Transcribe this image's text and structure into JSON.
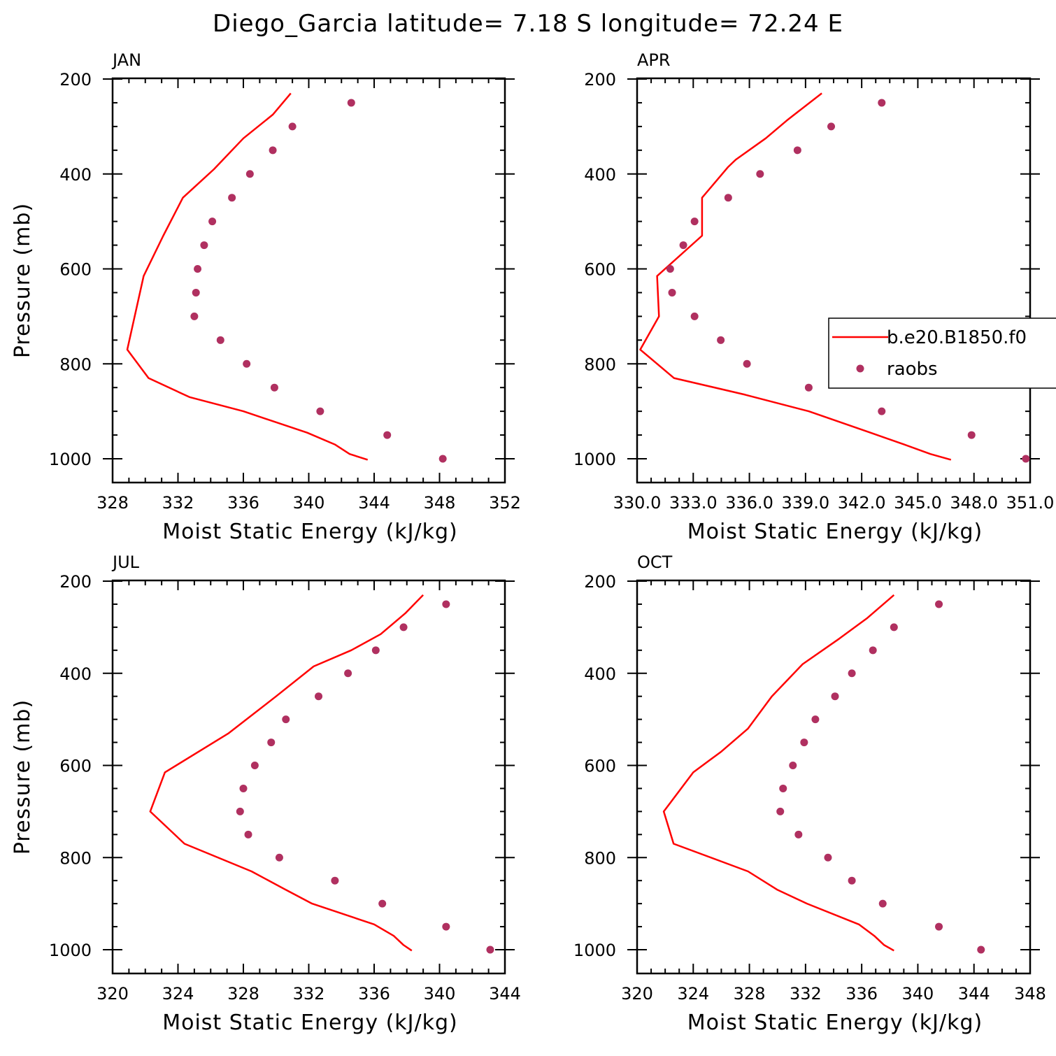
{
  "title": "Diego_Garcia  latitude= 7.18 S longitude= 72.24 E",
  "colors": {
    "model": "#ff0000",
    "raobs": "#b03060",
    "axes": "#000000"
  },
  "chart_data": [
    {
      "type": "line",
      "panel": "JAN",
      "xlabel": "Moist Static Energy (kJ/kg)",
      "ylabel": "Pressure (mb)",
      "xlim": [
        328,
        352
      ],
      "ylim": [
        1000,
        200
      ],
      "xticks": [
        328,
        332,
        336,
        340,
        344,
        348,
        352
      ],
      "xtick_labels": [
        "328",
        "332",
        "336",
        "340",
        "344",
        "348",
        "352"
      ],
      "yticks": [
        200,
        400,
        600,
        800,
        1000
      ],
      "ytick_labels": [
        "200",
        "400",
        "600",
        "800",
        "1000"
      ],
      "series": [
        {
          "style": "line",
          "color": "#ff0000",
          "x": [
            338.9,
            337.8,
            336.0,
            334.2,
            332.3,
            331.1,
            329.9,
            328.9,
            330.2,
            332.7,
            336.0,
            339.9,
            341.6,
            342.5,
            343.6
          ],
          "y": [
            230,
            275,
            325,
            390,
            450,
            530,
            615,
            770,
            830,
            870,
            900,
            945,
            970,
            990,
            1002
          ]
        },
        {
          "style": "points",
          "color": "#b03060",
          "x": [
            342.6,
            339.0,
            337.8,
            336.4,
            335.3,
            334.1,
            333.6,
            333.2,
            333.1,
            333.0,
            334.6,
            336.2,
            337.9,
            340.7,
            344.8,
            348.2
          ],
          "y": [
            250,
            300,
            350,
            400,
            450,
            500,
            550,
            600,
            650,
            700,
            750,
            800,
            850,
            900,
            950,
            1000
          ]
        }
      ]
    },
    {
      "type": "line",
      "panel": "APR",
      "xlabel": "Moist Static Energy (kJ/kg)",
      "ylabel": "",
      "xlim": [
        330.03,
        351.03
      ],
      "ylim": [
        1000,
        200
      ],
      "xticks": [
        330.03,
        333.03,
        336.03,
        339.03,
        342.03,
        345.03,
        348.03,
        351.03
      ],
      "xtick_labels": [
        "330.0",
        "333.0",
        "336.0",
        "339.0",
        "342.0",
        "345.0",
        "348.0",
        "351.0"
      ],
      "yticks": [
        200,
        400,
        600,
        800,
        1000
      ],
      "ytick_labels": [
        "200",
        "400",
        "600",
        "800",
        "1000"
      ],
      "legend": {
        "position": "right",
        "entries": [
          "b.e20.B1850.f0",
          "raobs"
        ]
      },
      "series": [
        {
          "style": "line",
          "color": "#ff0000",
          "name": "b.e20.B1850.f0",
          "x": [
            339.9,
            338.1,
            336.9,
            335.3,
            334.9,
            333.5,
            333.5,
            331.1,
            331.2,
            330.2,
            332.0,
            335.8,
            339.2,
            342.5,
            344.3,
            345.7,
            346.8
          ],
          "y": [
            230,
            285,
            325,
            370,
            385,
            450,
            530,
            615,
            700,
            770,
            830,
            865,
            900,
            945,
            970,
            990,
            1002
          ]
        },
        {
          "style": "points",
          "color": "#b03060",
          "name": "raobs",
          "x": [
            343.1,
            340.4,
            338.6,
            336.6,
            334.9,
            333.1,
            332.5,
            331.8,
            331.9,
            333.1,
            334.5,
            335.9,
            339.2,
            343.1,
            347.9,
            350.8
          ],
          "y": [
            250,
            300,
            350,
            400,
            450,
            500,
            550,
            600,
            650,
            700,
            750,
            800,
            850,
            900,
            950,
            1000
          ]
        }
      ]
    },
    {
      "type": "line",
      "panel": "JUL",
      "xlabel": "Moist Static Energy (kJ/kg)",
      "ylabel": "Pressure (mb)",
      "xlim": [
        320,
        344
      ],
      "ylim": [
        1000,
        200
      ],
      "xticks": [
        320,
        324,
        328,
        332,
        336,
        340,
        344
      ],
      "xtick_labels": [
        "320",
        "324",
        "328",
        "332",
        "336",
        "340",
        "344"
      ],
      "yticks": [
        200,
        400,
        600,
        800,
        1000
      ],
      "ytick_labels": [
        "200",
        "400",
        "600",
        "800",
        "1000"
      ],
      "series": [
        {
          "style": "line",
          "color": "#ff0000",
          "x": [
            339.0,
            337.9,
            336.4,
            334.6,
            332.3,
            330.0,
            327.1,
            323.2,
            322.3,
            324.4,
            328.5,
            330.6,
            332.2,
            336.0,
            337.2,
            337.8,
            338.3
          ],
          "y": [
            230,
            270,
            315,
            350,
            385,
            450,
            530,
            615,
            700,
            770,
            830,
            870,
            900,
            945,
            970,
            990,
            1002
          ]
        },
        {
          "style": "points",
          "color": "#b03060",
          "x": [
            340.4,
            337.8,
            336.1,
            334.4,
            332.6,
            330.6,
            329.7,
            328.7,
            328.0,
            327.8,
            328.3,
            330.2,
            333.6,
            336.5,
            340.4,
            343.1
          ],
          "y": [
            250,
            300,
            350,
            400,
            450,
            500,
            550,
            600,
            650,
            700,
            750,
            800,
            850,
            900,
            950,
            1000
          ]
        }
      ]
    },
    {
      "type": "line",
      "panel": "OCT",
      "xlabel": "Moist Static Energy (kJ/kg)",
      "ylabel": "",
      "xlim": [
        320,
        348
      ],
      "ylim": [
        1000,
        200
      ],
      "xticks": [
        320,
        324,
        328,
        332,
        336,
        340,
        344,
        348
      ],
      "xtick_labels": [
        "320",
        "324",
        "328",
        "332",
        "336",
        "340",
        "344",
        "348"
      ],
      "yticks": [
        200,
        400,
        600,
        800,
        1000
      ],
      "ytick_labels": [
        "200",
        "400",
        "600",
        "800",
        "1000"
      ],
      "series": [
        {
          "style": "line",
          "color": "#ff0000",
          "x": [
            338.3,
            336.4,
            334.4,
            331.8,
            329.6,
            327.9,
            326.0,
            324.0,
            321.9,
            322.6,
            327.9,
            330.0,
            332.1,
            335.8,
            336.9,
            337.6,
            338.3
          ],
          "y": [
            230,
            280,
            325,
            380,
            450,
            520,
            570,
            615,
            700,
            770,
            830,
            870,
            900,
            945,
            970,
            990,
            1002
          ]
        },
        {
          "style": "points",
          "color": "#b03060",
          "x": [
            341.5,
            338.3,
            336.8,
            335.3,
            334.1,
            332.7,
            331.9,
            331.1,
            330.4,
            330.2,
            331.5,
            333.6,
            335.3,
            337.5,
            341.5,
            344.5
          ],
          "y": [
            250,
            300,
            350,
            400,
            450,
            500,
            550,
            600,
            650,
            700,
            750,
            800,
            850,
            900,
            950,
            1000
          ]
        }
      ]
    }
  ]
}
